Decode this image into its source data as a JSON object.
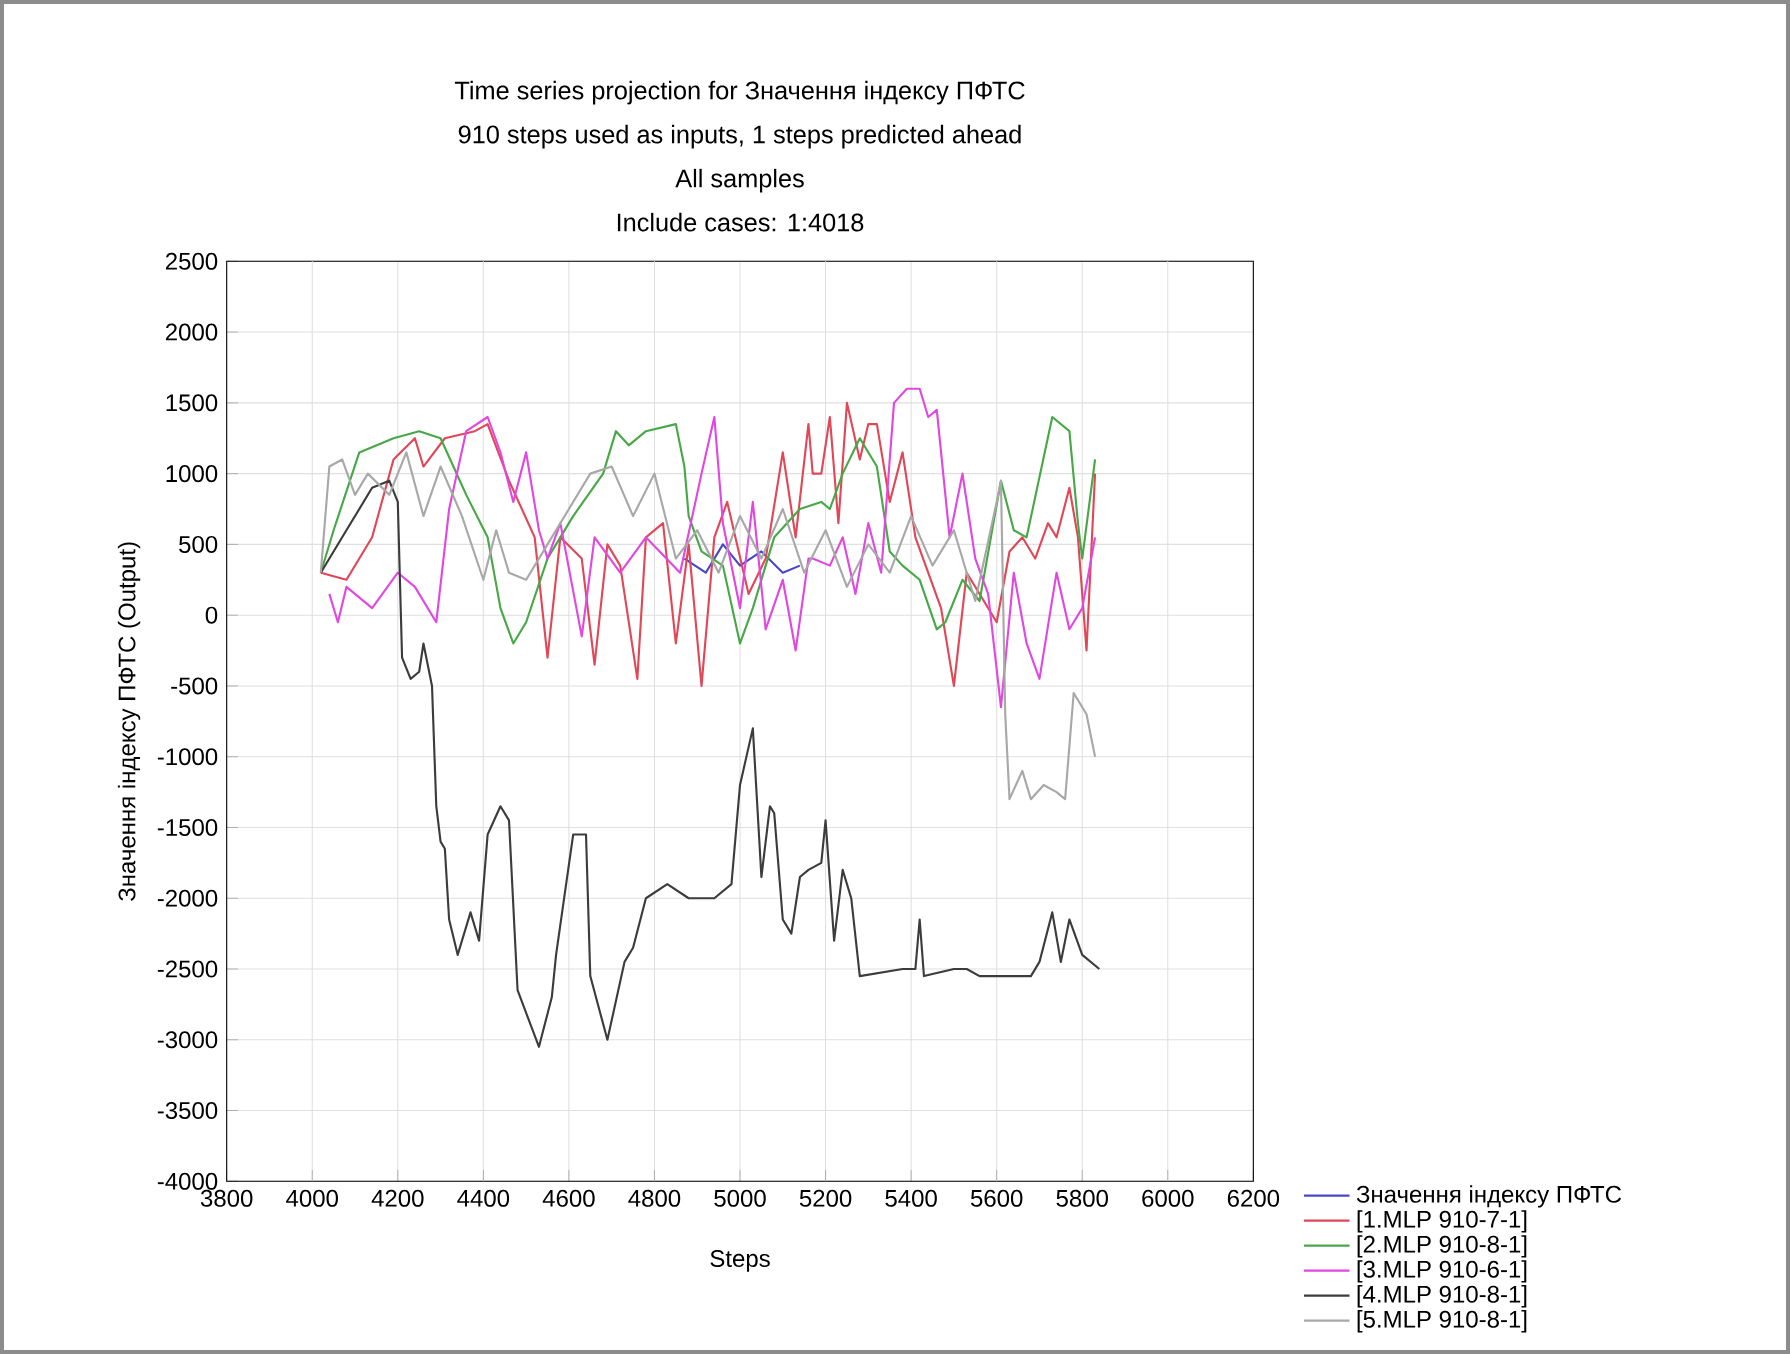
{
  "chart_data": {
    "type": "line",
    "title": "Time series projection for Значення індексу ПФТС",
    "subtitle": "910 steps used as inputs, 1 steps predicted ahead",
    "annotations": [
      "All samples",
      "Include cases: 1:4018"
    ],
    "xlabel": "Steps",
    "ylabel": "Значення індексу ПФТС (Output)",
    "xlim": [
      3800,
      6200
    ],
    "xticks": [
      3800,
      4000,
      4200,
      4400,
      4600,
      4800,
      5000,
      5200,
      5400,
      5600,
      5800,
      6000,
      6200
    ],
    "ylim": [
      -4000,
      2500
    ],
    "yticks": [
      -4000,
      -3500,
      -3000,
      -2500,
      -2000,
      -1500,
      -1000,
      -500,
      0,
      500,
      1000,
      1500,
      2000,
      2500
    ],
    "grid": true,
    "legend": "bottom right",
    "marker": "none",
    "line_style": "solid",
    "series": [
      {
        "name": "Значення індексу ПФТС",
        "color": "#4848c8",
        "x": [
          4870,
          4920,
          4960,
          5000,
          5050,
          5100,
          5140
        ],
        "values": [
          400,
          300,
          500,
          350,
          450,
          300,
          350
        ]
      },
      {
        "name": "[1.MLP 910-7-1]",
        "color": "#e04858",
        "x": [
          4020,
          4080,
          4140,
          4190,
          4240,
          4260,
          4310,
          4380,
          4410,
          4460,
          4520,
          4550,
          4580,
          4630,
          4660,
          4690,
          4720,
          4760,
          4780,
          4820,
          4850,
          4880,
          4910,
          4940,
          4970,
          5020,
          5060,
          5100,
          5130,
          5160,
          5170,
          5190,
          5210,
          5230,
          5250,
          5280,
          5300,
          5320,
          5350,
          5380,
          5410,
          5440,
          5470,
          5500,
          5530,
          5570,
          5600,
          5630,
          5660,
          5690,
          5720,
          5740,
          5770,
          5790,
          5810,
          5830
        ],
        "values": [
          300,
          250,
          550,
          1100,
          1250,
          1050,
          1250,
          1300,
          1350,
          950,
          550,
          -300,
          550,
          400,
          -350,
          500,
          350,
          -450,
          550,
          650,
          -200,
          500,
          -500,
          550,
          800,
          150,
          400,
          1150,
          550,
          1350,
          1000,
          1000,
          1400,
          650,
          1500,
          1100,
          1350,
          1350,
          800,
          1150,
          550,
          300,
          50,
          -500,
          300,
          100,
          -50,
          450,
          550,
          400,
          650,
          550,
          900,
          550,
          -250,
          1000
        ]
      },
      {
        "name": "[2.MLP 910-8-1]",
        "color": "#48a848",
        "x": [
          4020,
          4050,
          4110,
          4190,
          4250,
          4300,
          4330,
          4360,
          4410,
          4440,
          4470,
          4500,
          4550,
          4610,
          4680,
          4710,
          4740,
          4780,
          4850,
          4870,
          4880,
          4910,
          4960,
          5000,
          5030,
          5080,
          5140,
          5190,
          5210,
          5240,
          5280,
          5320,
          5350,
          5380,
          5420,
          5460,
          5480,
          5520,
          5560,
          5610,
          5640,
          5670,
          5730,
          5770,
          5790,
          5800,
          5830
        ],
        "values": [
          300,
          600,
          1150,
          1250,
          1300,
          1250,
          1050,
          850,
          550,
          50,
          -200,
          -50,
          400,
          700,
          1000,
          1300,
          1200,
          1300,
          1350,
          1050,
          700,
          450,
          350,
          -200,
          50,
          550,
          750,
          800,
          750,
          1000,
          1250,
          1050,
          450,
          350,
          250,
          -100,
          -50,
          250,
          100,
          950,
          600,
          550,
          1400,
          1300,
          650,
          400,
          1100
        ]
      },
      {
        "name": "[3.MLP 910-6-1]",
        "color": "#e048e0",
        "x": [
          4040,
          4060,
          4080,
          4140,
          4200,
          4240,
          4290,
          4320,
          4360,
          4410,
          4440,
          4470,
          4500,
          4530,
          4550,
          4580,
          4630,
          4660,
          4720,
          4780,
          4860,
          4910,
          4940,
          4960,
          5000,
          5030,
          5060,
          5100,
          5130,
          5160,
          5170,
          5210,
          5240,
          5270,
          5300,
          5330,
          5360,
          5390,
          5420,
          5440,
          5460,
          5490,
          5520,
          5550,
          5580,
          5610,
          5640,
          5670,
          5700,
          5740,
          5770,
          5800,
          5830
        ],
        "values": [
          150,
          -50,
          200,
          50,
          300,
          200,
          -50,
          750,
          1300,
          1400,
          1150,
          800,
          1150,
          600,
          400,
          650,
          -150,
          550,
          300,
          550,
          300,
          1000,
          1400,
          650,
          50,
          800,
          -100,
          250,
          -250,
          400,
          400,
          350,
          550,
          150,
          650,
          300,
          1500,
          1600,
          1600,
          1400,
          1450,
          550,
          1000,
          400,
          150,
          -650,
          300,
          -200,
          -450,
          300,
          -100,
          50,
          550
        ]
      },
      {
        "name": "[4.MLP 910-8-1]",
        "color": "#3c3c3c",
        "x": [
          4020,
          4070,
          4140,
          4180,
          4200,
          4210,
          4230,
          4250,
          4260,
          4280,
          4290,
          4300,
          4310,
          4320,
          4340,
          4370,
          4390,
          4410,
          4440,
          4460,
          4480,
          4530,
          4560,
          4570,
          4610,
          4640,
          4650,
          4690,
          4730,
          4750,
          4780,
          4830,
          4880,
          4940,
          4980,
          5000,
          5030,
          5050,
          5070,
          5080,
          5100,
          5120,
          5140,
          5160,
          5190,
          5200,
          5220,
          5240,
          5260,
          5280,
          5380,
          5410,
          5420,
          5430,
          5500,
          5530,
          5560,
          5680,
          5700,
          5730,
          5750,
          5770,
          5800,
          5840
        ],
        "values": [
          300,
          550,
          900,
          950,
          800,
          -300,
          -450,
          -400,
          -200,
          -500,
          -1350,
          -1600,
          -1650,
          -2150,
          -2400,
          -2100,
          -2300,
          -1550,
          -1350,
          -1450,
          -2650,
          -3050,
          -2700,
          -2400,
          -1550,
          -1550,
          -2550,
          -3000,
          -2450,
          -2350,
          -2000,
          -1900,
          -2000,
          -2000,
          -1900,
          -1200,
          -800,
          -1850,
          -1350,
          -1400,
          -2150,
          -2250,
          -1850,
          -1800,
          -1750,
          -1450,
          -2300,
          -1800,
          -2000,
          -2550,
          -2500,
          -2500,
          -2150,
          -2550,
          -2500,
          -2500,
          -2550,
          -2550,
          -2450,
          -2100,
          -2450,
          -2150,
          -2400,
          -2500
        ]
      },
      {
        "name": "[5.MLP 910-8-1]",
        "color": "#a8a8a8",
        "x": [
          4020,
          4040,
          4070,
          4100,
          4130,
          4180,
          4220,
          4260,
          4300,
          4350,
          4400,
          4430,
          4460,
          4500,
          4550,
          4600,
          4650,
          4700,
          4750,
          4800,
          4850,
          4900,
          4950,
          5000,
          5050,
          5100,
          5150,
          5200,
          5250,
          5300,
          5350,
          5400,
          5450,
          5500,
          5550,
          5600,
          5610,
          5620,
          5630,
          5660,
          5680,
          5710,
          5740,
          5760,
          5780,
          5810,
          5830
        ],
        "values": [
          300,
          1050,
          1100,
          850,
          1000,
          850,
          1150,
          700,
          1050,
          700,
          250,
          600,
          300,
          250,
          500,
          750,
          1000,
          1050,
          700,
          1000,
          400,
          600,
          300,
          700,
          400,
          750,
          300,
          600,
          200,
          500,
          300,
          700,
          350,
          600,
          100,
          800,
          950,
          -700,
          -1300,
          -1100,
          -1300,
          -1200,
          -1250,
          -1300,
          -550,
          -700,
          -1000
        ]
      }
    ]
  }
}
